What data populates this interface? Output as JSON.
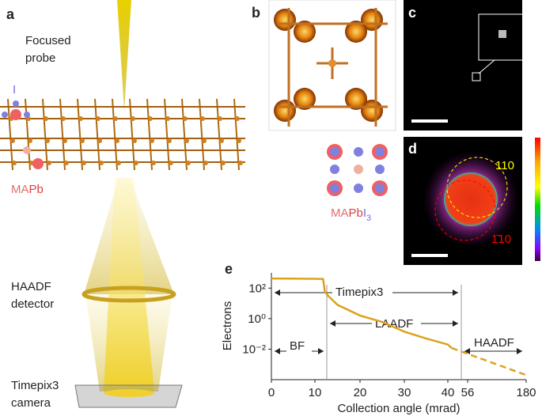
{
  "panels": {
    "a": {
      "label": "a",
      "probe_label": [
        "Focused",
        "probe"
      ],
      "iodine": "I",
      "ma_pb": [
        "MA",
        "Pb"
      ],
      "haadf": [
        "HAADF",
        "detector"
      ],
      "camera": [
        "Timepix3",
        "camera"
      ]
    },
    "b": {
      "label": "b",
      "formula": [
        "MA",
        "Pb",
        "I",
        "3"
      ]
    },
    "c": {
      "label": "c"
    },
    "d": {
      "label": "d",
      "spots": [
        "110",
        "1̄10"
      ]
    },
    "e": {
      "label": "e",
      "regions": [
        "BF",
        "Timepix3",
        "LAADF",
        "HAADF"
      ]
    }
  },
  "chart_data": {
    "type": "line",
    "xlabel": "Collection angle (mrad)",
    "ylabel": "Electrons",
    "log_y": true,
    "xlim": [
      0,
      180
    ],
    "xticks": [
      0,
      10,
      20,
      30,
      40,
      56,
      180
    ],
    "ylim": [
      0.0001,
      1000
    ],
    "yticks": [
      {
        "value": 100,
        "label": "10²"
      },
      {
        "value": 1,
        "label": "10⁰"
      },
      {
        "value": 0.01,
        "label": "10⁻²"
      }
    ],
    "series": [
      {
        "color": "#dca21c",
        "dash": false,
        "x": [
          0,
          5,
          10,
          11.8,
          12.2,
          13,
          15,
          20,
          25,
          30,
          35,
          40,
          43
        ],
        "values": [
          430,
          420,
          410,
          400,
          60,
          30,
          8,
          1.6,
          0.6,
          0.14,
          0.05,
          0.02,
          0.012
        ]
      },
      {
        "color": "#dca21c",
        "dash": true,
        "x": [
          43,
          180
        ],
        "values": [
          0.012,
          0.0002
        ]
      }
    ]
  }
}
